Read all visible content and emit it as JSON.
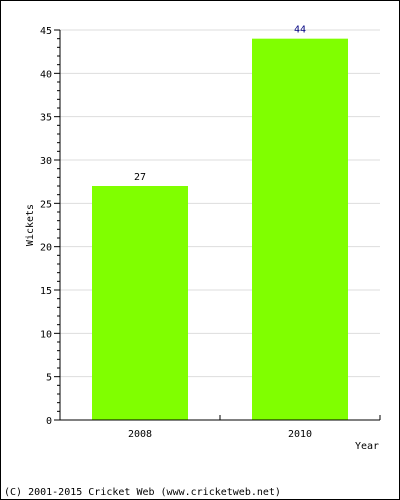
{
  "chart_data": {
    "type": "bar",
    "categories": [
      "2008",
      "2010"
    ],
    "values": [
      27,
      44
    ],
    "data_labels": [
      "27",
      "44"
    ],
    "xlabel": "Year",
    "ylabel": "Wickets",
    "ylim": [
      0,
      45
    ],
    "yticks": [
      0,
      5,
      10,
      15,
      20,
      25,
      30,
      35,
      40,
      45
    ],
    "ytick_labels": [
      "0",
      "5",
      "10",
      "15",
      "20",
      "25",
      "30",
      "35",
      "40",
      "45"
    ],
    "grid": true,
    "bar_color": "#80ff00",
    "label_color_low": "#000000",
    "label_color_high": "#000080"
  },
  "footer": {
    "copyright": "(C) 2001-2015 Cricket Web (www.cricketweb.net)"
  }
}
